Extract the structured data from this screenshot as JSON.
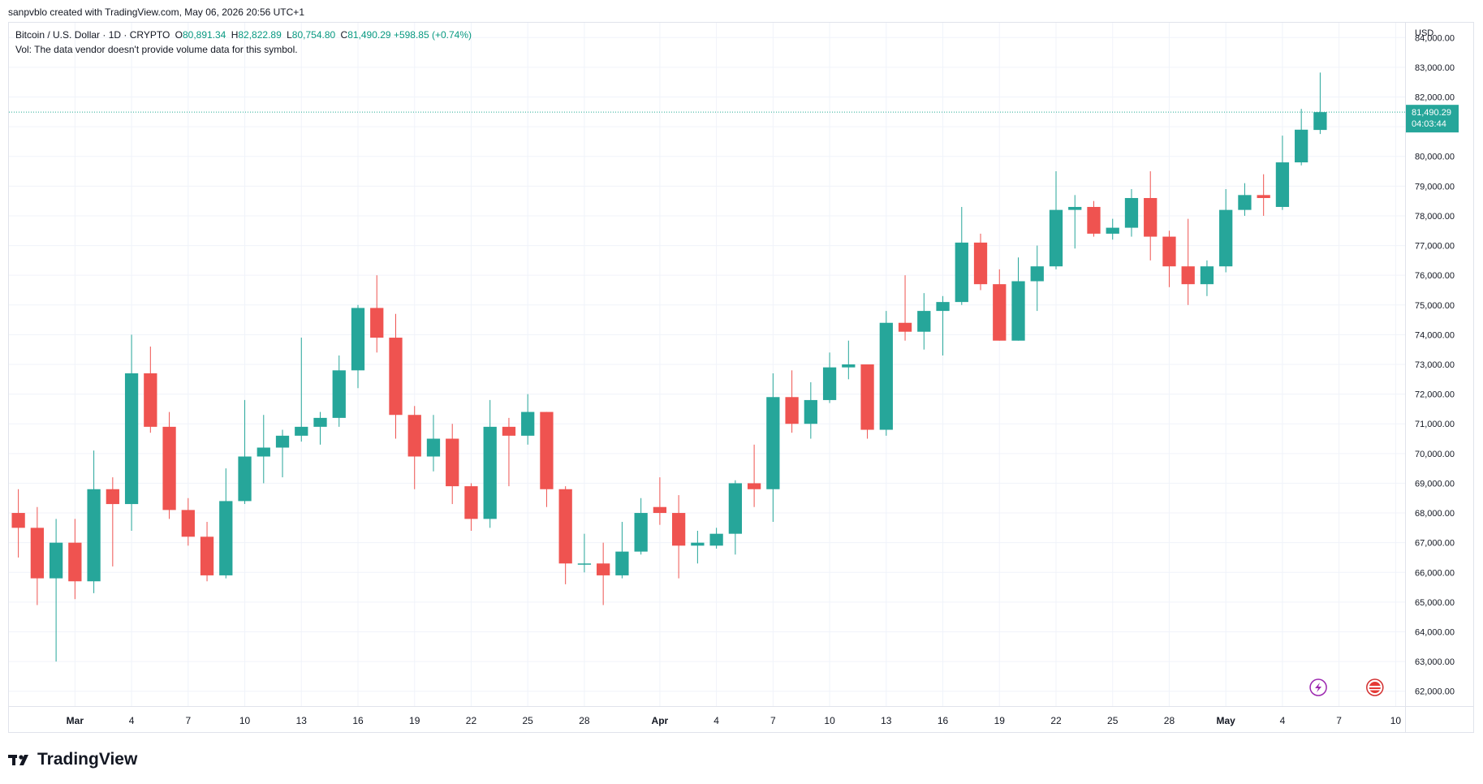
{
  "header": {
    "credit": "sanpvblo created with TradingView.com, May 06, 2026 20:56 UTC+1"
  },
  "legend": {
    "symbol": "Bitcoin / U.S. Dollar · 1D · CRYPTO",
    "o_label": "O",
    "o_value": "80,891.34",
    "h_label": "H",
    "h_value": "82,822.89",
    "l_label": "L",
    "l_value": "80,754.80",
    "c_label": "C",
    "c_value": "81,490.29",
    "change": "+598.85 (+0.74%)",
    "vol_note": "Vol: The data vendor doesn't provide volume data for this symbol."
  },
  "price_axis": {
    "currency": "USD",
    "current_price_label": "81,490.29",
    "countdown": "04:03:44"
  },
  "footer": {
    "brand": "TradingView"
  },
  "colors": {
    "up": "#26a69a",
    "down": "#ef5350",
    "grid": "#f0f3fa",
    "price_line": "#22ab94",
    "axis_text": "#131722"
  },
  "chart_data": {
    "type": "candlestick",
    "ylim": [
      61500,
      84500
    ],
    "yticks": [
      62000,
      63000,
      64000,
      65000,
      66000,
      67000,
      68000,
      69000,
      70000,
      71000,
      72000,
      73000,
      74000,
      75000,
      76000,
      77000,
      78000,
      79000,
      80000,
      81000,
      82000,
      83000,
      84000
    ],
    "ytick_labels": [
      "62,000.00",
      "63,000.00",
      "64,000.00",
      "65,000.00",
      "66,000.00",
      "67,000.00",
      "68,000.00",
      "69,000.00",
      "70,000.00",
      "71,000.00",
      "72,000.00",
      "73,000.00",
      "74,000.00",
      "75,000.00",
      "76,000.00",
      "77,000.00",
      "78,000.00",
      "79,000.00",
      "80,000.00",
      "81,000.00",
      "82,000.00",
      "83,000.00",
      "84,000.00"
    ],
    "xlim": [
      -0.5,
      73.5
    ],
    "xticks": [
      {
        "i": 3,
        "label": "Mar"
      },
      {
        "i": 6,
        "label": "4"
      },
      {
        "i": 9,
        "label": "7"
      },
      {
        "i": 12,
        "label": "10"
      },
      {
        "i": 15,
        "label": "13"
      },
      {
        "i": 18,
        "label": "16"
      },
      {
        "i": 21,
        "label": "19"
      },
      {
        "i": 24,
        "label": "22"
      },
      {
        "i": 27,
        "label": "25"
      },
      {
        "i": 30,
        "label": "28"
      },
      {
        "i": 34,
        "label": "Apr"
      },
      {
        "i": 37,
        "label": "4"
      },
      {
        "i": 40,
        "label": "7"
      },
      {
        "i": 43,
        "label": "10"
      },
      {
        "i": 46,
        "label": "13"
      },
      {
        "i": 49,
        "label": "16"
      },
      {
        "i": 52,
        "label": "19"
      },
      {
        "i": 55,
        "label": "22"
      },
      {
        "i": 58,
        "label": "25"
      },
      {
        "i": 61,
        "label": "28"
      },
      {
        "i": 64,
        "label": "May"
      },
      {
        "i": 67,
        "label": "4"
      },
      {
        "i": 70,
        "label": "7"
      },
      {
        "i": 73,
        "label": "10"
      }
    ],
    "current_price": 81490.29,
    "candles": [
      {
        "o": 68000,
        "h": 68800,
        "l": 66500,
        "c": 67500
      },
      {
        "o": 67500,
        "h": 68200,
        "l": 64900,
        "c": 65800
      },
      {
        "o": 65800,
        "h": 67800,
        "l": 63000,
        "c": 67000
      },
      {
        "o": 67000,
        "h": 67800,
        "l": 65100,
        "c": 65700
      },
      {
        "o": 65700,
        "h": 70100,
        "l": 65300,
        "c": 68800
      },
      {
        "o": 68800,
        "h": 69200,
        "l": 66200,
        "c": 68300
      },
      {
        "o": 68300,
        "h": 74000,
        "l": 67400,
        "c": 72700
      },
      {
        "o": 72700,
        "h": 73600,
        "l": 70700,
        "c": 70900
      },
      {
        "o": 70900,
        "h": 71400,
        "l": 67800,
        "c": 68100
      },
      {
        "o": 68100,
        "h": 68500,
        "l": 66900,
        "c": 67200
      },
      {
        "o": 67200,
        "h": 67700,
        "l": 65700,
        "c": 65900
      },
      {
        "o": 65900,
        "h": 69500,
        "l": 65800,
        "c": 68400
      },
      {
        "o": 68400,
        "h": 71800,
        "l": 68300,
        "c": 69900
      },
      {
        "o": 69900,
        "h": 71300,
        "l": 69000,
        "c": 70200
      },
      {
        "o": 70200,
        "h": 70800,
        "l": 69200,
        "c": 70600
      },
      {
        "o": 70600,
        "h": 73900,
        "l": 70400,
        "c": 70900
      },
      {
        "o": 70900,
        "h": 71400,
        "l": 70300,
        "c": 71200
      },
      {
        "o": 71200,
        "h": 73300,
        "l": 70900,
        "c": 72800
      },
      {
        "o": 72800,
        "h": 75000,
        "l": 72200,
        "c": 74900
      },
      {
        "o": 74900,
        "h": 76000,
        "l": 73400,
        "c": 73900
      },
      {
        "o": 73900,
        "h": 74700,
        "l": 70500,
        "c": 71300
      },
      {
        "o": 71300,
        "h": 71600,
        "l": 68800,
        "c": 69900
      },
      {
        "o": 69900,
        "h": 71300,
        "l": 69400,
        "c": 70500
      },
      {
        "o": 70500,
        "h": 71000,
        "l": 68300,
        "c": 68900
      },
      {
        "o": 68900,
        "h": 69000,
        "l": 67400,
        "c": 67800
      },
      {
        "o": 67800,
        "h": 71800,
        "l": 67500,
        "c": 70900
      },
      {
        "o": 70900,
        "h": 71200,
        "l": 68900,
        "c": 70600
      },
      {
        "o": 70600,
        "h": 72000,
        "l": 70300,
        "c": 71400
      },
      {
        "o": 71400,
        "h": 71400,
        "l": 68200,
        "c": 68800
      },
      {
        "o": 68800,
        "h": 68900,
        "l": 65600,
        "c": 66300
      },
      {
        "o": 66300,
        "h": 67300,
        "l": 66000,
        "c": 66300
      },
      {
        "o": 66300,
        "h": 67000,
        "l": 64900,
        "c": 65900
      },
      {
        "o": 65900,
        "h": 67700,
        "l": 65800,
        "c": 66700
      },
      {
        "o": 66700,
        "h": 68500,
        "l": 66600,
        "c": 68000
      },
      {
        "o": 68200,
        "h": 69200,
        "l": 67600,
        "c": 68000
      },
      {
        "o": 68000,
        "h": 68600,
        "l": 65800,
        "c": 66900
      },
      {
        "o": 66900,
        "h": 67400,
        "l": 66300,
        "c": 67000
      },
      {
        "o": 66900,
        "h": 67500,
        "l": 66800,
        "c": 67300
      },
      {
        "o": 67300,
        "h": 69100,
        "l": 66600,
        "c": 69000
      },
      {
        "o": 69000,
        "h": 70300,
        "l": 68200,
        "c": 68800
      },
      {
        "o": 68800,
        "h": 72700,
        "l": 67700,
        "c": 71900
      },
      {
        "o": 71900,
        "h": 72800,
        "l": 70700,
        "c": 71000
      },
      {
        "o": 71000,
        "h": 72400,
        "l": 70500,
        "c": 71800
      },
      {
        "o": 71800,
        "h": 73400,
        "l": 71700,
        "c": 72900
      },
      {
        "o": 72900,
        "h": 73800,
        "l": 72500,
        "c": 73000
      },
      {
        "o": 73000,
        "h": 73000,
        "l": 70500,
        "c": 70800
      },
      {
        "o": 70800,
        "h": 74800,
        "l": 70600,
        "c": 74400
      },
      {
        "o": 74400,
        "h": 76000,
        "l": 73800,
        "c": 74100
      },
      {
        "o": 74100,
        "h": 75400,
        "l": 73500,
        "c": 74800
      },
      {
        "o": 74800,
        "h": 75300,
        "l": 73300,
        "c": 75100
      },
      {
        "o": 75100,
        "h": 78300,
        "l": 75000,
        "c": 77100
      },
      {
        "o": 77100,
        "h": 77400,
        "l": 75500,
        "c": 75700
      },
      {
        "o": 75700,
        "h": 76200,
        "l": 73800,
        "c": 73800
      },
      {
        "o": 73800,
        "h": 76600,
        "l": 73800,
        "c": 75800
      },
      {
        "o": 75800,
        "h": 77000,
        "l": 74800,
        "c": 76300
      },
      {
        "o": 76300,
        "h": 79500,
        "l": 76200,
        "c": 78200
      },
      {
        "o": 78200,
        "h": 78700,
        "l": 76900,
        "c": 78300
      },
      {
        "o": 78300,
        "h": 78500,
        "l": 77300,
        "c": 77400
      },
      {
        "o": 77400,
        "h": 77900,
        "l": 77200,
        "c": 77600
      },
      {
        "o": 77600,
        "h": 78900,
        "l": 77300,
        "c": 78600
      },
      {
        "o": 78600,
        "h": 79500,
        "l": 76500,
        "c": 77300
      },
      {
        "o": 77300,
        "h": 77500,
        "l": 75600,
        "c": 76300
      },
      {
        "o": 76300,
        "h": 77900,
        "l": 75000,
        "c": 75700
      },
      {
        "o": 75700,
        "h": 76500,
        "l": 75300,
        "c": 76300
      },
      {
        "o": 76300,
        "h": 78900,
        "l": 76100,
        "c": 78200
      },
      {
        "o": 78200,
        "h": 79100,
        "l": 78000,
        "c": 78700
      },
      {
        "o": 78700,
        "h": 79400,
        "l": 78000,
        "c": 78600
      },
      {
        "o": 78300,
        "h": 80700,
        "l": 78200,
        "c": 79800
      },
      {
        "o": 79800,
        "h": 81600,
        "l": 79700,
        "c": 80900
      },
      {
        "o": 80891.34,
        "h": 82822.89,
        "l": 80754.8,
        "c": 81490.29
      }
    ]
  }
}
